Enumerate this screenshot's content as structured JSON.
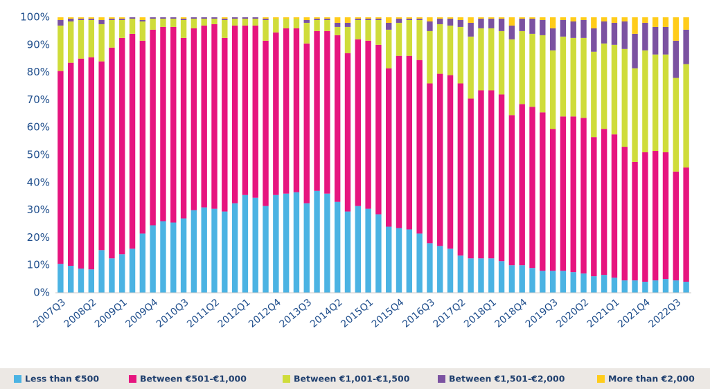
{
  "chart_data": {
    "type": "stacked_bar",
    "categories": [
      "2007Q3",
      null,
      null,
      "2008Q2",
      null,
      null,
      "2009Q1",
      null,
      null,
      "2009Q4",
      null,
      null,
      "2010Q3",
      null,
      null,
      "2011Q2",
      null,
      null,
      "2012Q1",
      null,
      null,
      "2012Q4",
      null,
      null,
      "2013Q3",
      null,
      null,
      "2014Q2",
      null,
      null,
      "2015Q1",
      null,
      null,
      "2015Q4",
      null,
      null,
      "2016Q3",
      null,
      null,
      "2017Q2",
      null,
      null,
      "2018Q1",
      null,
      null,
      "2018Q4",
      null,
      null,
      "2019Q3",
      null,
      null,
      "2020Q2",
      null,
      null,
      "2021Q1",
      null,
      null,
      "2021Q4",
      null,
      null,
      "2022Q3",
      null
    ],
    "series": [
      {
        "name": "Less than €500",
        "color": "#4bb3e3",
        "values": [
          10.5,
          9.8,
          8.8,
          8.5,
          15.5,
          12.5,
          14,
          16,
          21.5,
          24.5,
          26,
          25.5,
          27,
          30,
          31,
          30.5,
          29.5,
          32.5,
          35.5,
          34.5,
          31.5,
          35.5,
          36,
          36.5,
          32.5,
          37,
          36,
          33,
          29.5,
          31.5,
          30.5,
          28.5,
          24,
          23.5,
          23,
          21.5,
          18,
          17,
          16,
          13.5,
          12.5,
          12.5,
          12.5,
          11.5,
          10,
          10,
          9,
          8,
          8,
          8,
          7.5,
          7,
          6,
          6.5,
          5.5,
          4.5,
          4.5,
          4,
          4.5,
          5,
          4.5,
          4
        ]
      },
      {
        "name": "Between €501-€1,000",
        "color": "#e6157f",
        "values": [
          70,
          73.7,
          76.2,
          77,
          68.5,
          76.5,
          78.5,
          78,
          70,
          71,
          70.5,
          71,
          65.5,
          66,
          66,
          67,
          63,
          64.5,
          61.5,
          62.5,
          60,
          59,
          60,
          59.5,
          58,
          58,
          59,
          60.5,
          57.5,
          60.5,
          61,
          61.5,
          57.5,
          62.5,
          63,
          63,
          58,
          62.5,
          63,
          62.5,
          58,
          61,
          61,
          60.5,
          54.5,
          58.5,
          58.5,
          57.5,
          51.5,
          56,
          56.5,
          56.5,
          50.5,
          53,
          52,
          48.5,
          43,
          47,
          47,
          46,
          39.5,
          41.5
        ]
      },
      {
        "name": "Between €1,001-€1,500",
        "color": "#cfdc3a",
        "values": [
          16.5,
          15,
          14,
          13.5,
          13.5,
          10,
          6.5,
          5.5,
          7,
          4,
          3,
          3,
          6.5,
          3.5,
          2.5,
          2,
          6.5,
          2.5,
          2.5,
          2.5,
          7.5,
          5,
          3.5,
          3.5,
          7.5,
          4,
          4,
          3,
          9.5,
          7,
          7.5,
          9,
          14,
          12,
          13,
          14.5,
          19,
          18,
          18,
          20.5,
          22.5,
          22.5,
          22.5,
          23,
          27.5,
          26.5,
          26.5,
          28,
          28.5,
          29,
          28.5,
          29,
          31,
          31,
          32.5,
          35.5,
          34,
          37,
          35,
          35.5,
          34,
          37.5
        ]
      },
      {
        "name": "Between €1,501-€2,000",
        "color": "#7b52a1",
        "values": [
          2,
          1,
          0.5,
          0.5,
          1.5,
          0.5,
          0.5,
          0.5,
          0.5,
          0.5,
          0.5,
          0.5,
          0.5,
          0.5,
          0.5,
          0.5,
          0.5,
          0.5,
          0.5,
          0.5,
          0.5,
          0,
          0,
          0,
          1,
          0.5,
          0.5,
          1.5,
          1.5,
          0.5,
          0.5,
          0.5,
          2.5,
          1.5,
          0.5,
          0.5,
          3.5,
          2,
          2.5,
          2.5,
          5,
          3.5,
          3.5,
          4.5,
          5,
          4.5,
          5.5,
          5.5,
          8,
          6,
          6,
          6.5,
          8.5,
          8,
          8,
          10,
          12.5,
          10,
          10,
          10,
          13.5,
          12.5
        ]
      },
      {
        "name": "More than €2,000",
        "color": "#ffcc1a",
        "values": [
          1,
          0.5,
          0.5,
          0.5,
          1,
          0.5,
          0.5,
          0,
          1,
          0,
          0,
          0,
          0.5,
          0,
          0,
          0,
          0.5,
          0,
          0,
          0,
          0.5,
          0.5,
          0.5,
          0.5,
          1,
          0.5,
          0.5,
          2,
          2,
          0.5,
          0.5,
          0.5,
          2,
          0.5,
          0.5,
          0.5,
          1.5,
          0.5,
          0.5,
          1,
          2,
          0.5,
          0.5,
          0.5,
          3,
          0.5,
          0.5,
          1,
          4,
          1,
          1.5,
          1,
          4,
          1.5,
          2,
          1.5,
          6,
          2,
          3.5,
          3.5,
          8.5,
          4.5
        ]
      }
    ],
    "ylim": [
      0,
      100
    ],
    "yticks": [
      {
        "value": 0,
        "label": "0%"
      },
      {
        "value": 10,
        "label": "10%"
      },
      {
        "value": 20,
        "label": "20%"
      },
      {
        "value": 30,
        "label": "30%"
      },
      {
        "value": 40,
        "label": "40%"
      },
      {
        "value": 50,
        "label": "50%"
      },
      {
        "value": 60,
        "label": "60%"
      },
      {
        "value": 70,
        "label": "70%"
      },
      {
        "value": 80,
        "label": "80%"
      },
      {
        "value": 90,
        "label": "90%"
      },
      {
        "value": 100,
        "label": "100%"
      }
    ],
    "grid": false,
    "legend": "bottom"
  }
}
